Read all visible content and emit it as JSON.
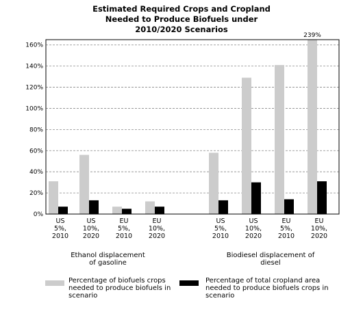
{
  "chart_data": {
    "type": "bar",
    "title": "Estimated Required Crops and Cropland Needed to Produce Biofuels under 2010/2020 Scenarios",
    "categories": [
      "US 5%, 2010",
      "US 10%, 2020",
      "EU 5%, 2010",
      "EU 10%, 2020",
      "US 5%, 2010",
      "US 10%, 2020",
      "EU 5%, 2010",
      "EU 10%, 2020"
    ],
    "groups": [
      "Ethanol displacement of gasoline",
      "Biodiesel displacement of diesel"
    ],
    "series": [
      {
        "name": "Percentage of biofuels crops needed to produce biofuels in scenario",
        "color": "#cccccc",
        "values": [
          31,
          56,
          7,
          12,
          58,
          129,
          141,
          239
        ],
        "value_labels": [
          null,
          null,
          null,
          null,
          null,
          null,
          null,
          "239%"
        ]
      },
      {
        "name": "Percentage of total cropland area needed to produce biofuels crops in scenario",
        "color": "#000000",
        "values": [
          7,
          13,
          5,
          7,
          13,
          30,
          14,
          31
        ]
      }
    ],
    "ylim": [
      0,
      165
    ],
    "yticks": [
      {
        "value": 0,
        "label": "0%"
      },
      {
        "value": 20,
        "label": "20%"
      },
      {
        "value": 40,
        "label": "40%"
      },
      {
        "value": 60,
        "label": "60%"
      },
      {
        "value": 80,
        "label": "80%"
      },
      {
        "value": 100,
        "label": "100%"
      },
      {
        "value": 120,
        "label": "120%"
      },
      {
        "value": 140,
        "label": "140%"
      },
      {
        "value": 160,
        "label": "160%"
      }
    ],
    "grid": true
  }
}
